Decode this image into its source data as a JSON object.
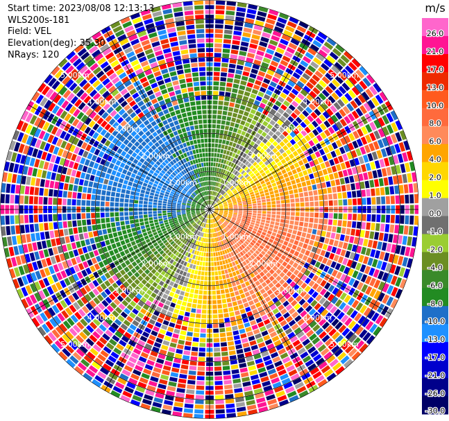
{
  "header": {
    "start_time": "Start time: 2023/08/08 12:13:13",
    "instrument": "WLS200s-181",
    "field": "Field: VEL",
    "elevation": "Elevation(deg): 35.30",
    "nrays": "NRays: 120"
  },
  "chart_data": {
    "type": "heatmap",
    "projection": "polar-ppi",
    "title": "",
    "n_rays": 120,
    "elevation_deg": 35.3,
    "field": "VEL",
    "range_rings_km": [
      1,
      2,
      3,
      4,
      5
    ],
    "range_ring_labels": [
      "1.00km",
      "2.00km",
      "3.00km",
      "4.00km",
      "5.00km"
    ],
    "max_range_km": 5.5,
    "colorbar": {
      "unit": "m/s",
      "vmin": -30,
      "vmax": 30,
      "tick_labels": [
        "26.0",
        "21.0",
        "17.0",
        "13.0",
        "10.0",
        "8.0",
        "6.0",
        "4.0",
        "2.0",
        "1.0",
        "0.0",
        "-1.0",
        "-2.0",
        "-4.0",
        "-6.0",
        "-8.0",
        "-10.0",
        "-13.0",
        "-17.0",
        "-21.0",
        "-26.0",
        "-30.0"
      ],
      "bins": [
        {
          "min": 26,
          "max": 30,
          "color": "#ff66cc"
        },
        {
          "min": 21,
          "max": 26,
          "color": "#ff1493"
        },
        {
          "min": 17,
          "max": 21,
          "color": "#ff0000"
        },
        {
          "min": 13,
          "max": 17,
          "color": "#ee2a00"
        },
        {
          "min": 10,
          "max": 13,
          "color": "#ff5a1e"
        },
        {
          "min": 8,
          "max": 10,
          "color": "#ff6a3c"
        },
        {
          "min": 6,
          "max": 8,
          "color": "#ff8a5a"
        },
        {
          "min": 4,
          "max": 6,
          "color": "#ffa500"
        },
        {
          "min": 2,
          "max": 4,
          "color": "#ffd700"
        },
        {
          "min": 1,
          "max": 2,
          "color": "#ffff00"
        },
        {
          "min": 0,
          "max": 1,
          "color": "#a0a0a0"
        },
        {
          "min": -1,
          "max": 0,
          "color": "#707070"
        },
        {
          "min": -2,
          "max": -1,
          "color": "#9acd32"
        },
        {
          "min": -4,
          "max": -2,
          "color": "#6b8e23"
        },
        {
          "min": -6,
          "max": -4,
          "color": "#3a8a2a"
        },
        {
          "min": -8,
          "max": -6,
          "color": "#228b22"
        },
        {
          "min": -10,
          "max": -8,
          "color": "#1e6fc8"
        },
        {
          "min": -13,
          "max": -10,
          "color": "#1e90ff"
        },
        {
          "min": -17,
          "max": -13,
          "color": "#0000ff"
        },
        {
          "min": -21,
          "max": -17,
          "color": "#0000cd"
        },
        {
          "min": -26,
          "max": -21,
          "color": "#00008b"
        },
        {
          "min": -30,
          "max": -26,
          "color": "#000066"
        }
      ]
    }
  }
}
